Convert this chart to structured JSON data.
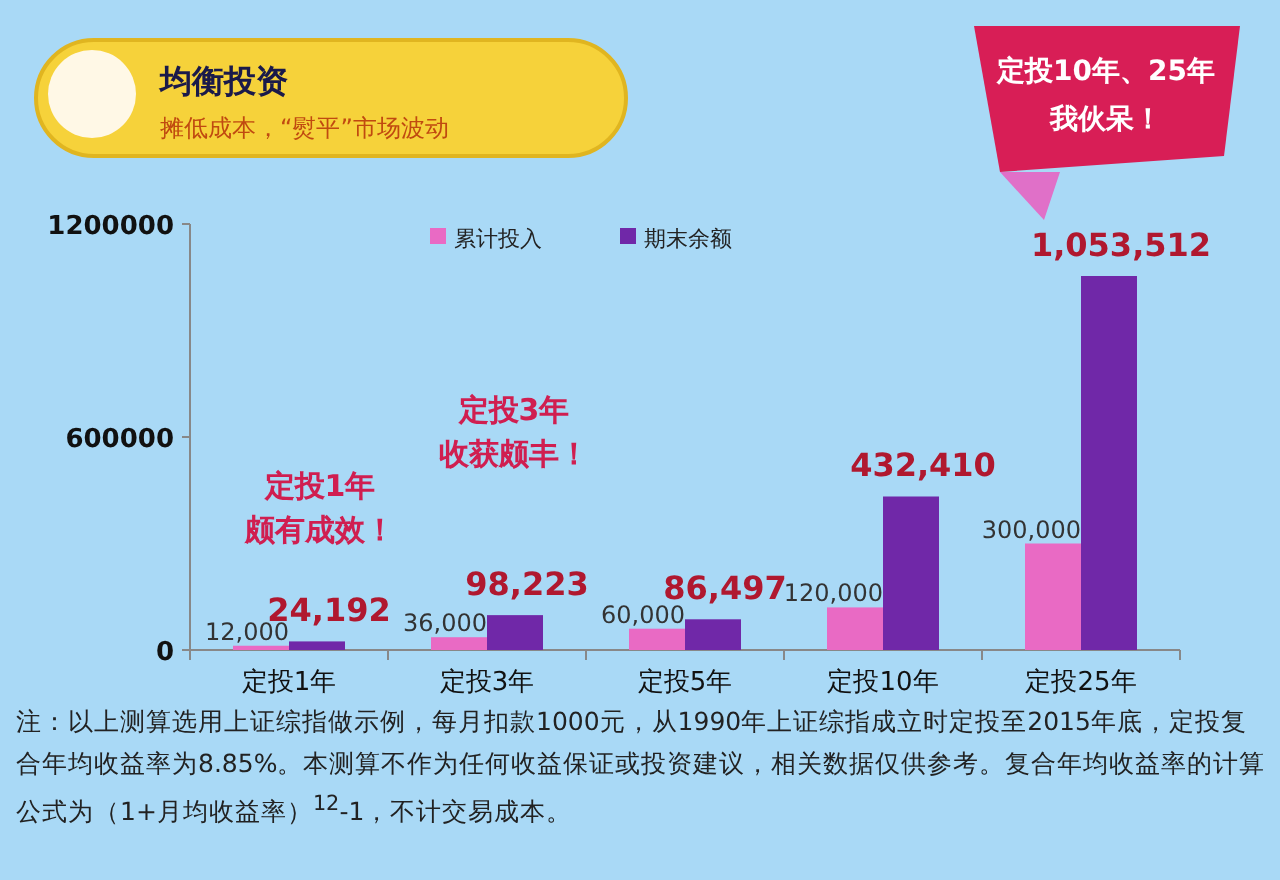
{
  "chart_data": {
    "type": "bar",
    "title": "均衡投资",
    "subtitle": "摊低成本，“熨平”市场波动",
    "categories": [
      "定投1年",
      "定投3年",
      "定投5年",
      "定投10年",
      "定投25年"
    ],
    "series": [
      {
        "name": "累计投入",
        "color": "#e96ac4",
        "values": [
          12000,
          36000,
          60000,
          120000,
          300000
        ],
        "value_labels": [
          "12,000",
          "36,000",
          "60,000",
          "120,000",
          "300,000"
        ]
      },
      {
        "name": "期末余额",
        "color": "#7028a8",
        "values": [
          24192,
          98223,
          86497,
          432410,
          1053512
        ],
        "value_labels": [
          "24,192",
          "98,223",
          "86,497",
          "432,410",
          "1,053,512"
        ]
      }
    ],
    "ylim": [
      0,
      1200000
    ],
    "yticks": [
      0,
      600000,
      1200000
    ],
    "legend": "top",
    "grid": false,
    "annotations": [
      "定投10年、25年",
      "我伙呆！",
      "定投1年",
      "颇有成效！",
      "定投3年",
      "收获颇丰！",
      "注：以上测算选用上证综指做示例，每月扣款1000元，从1990年上证综指成立时定投至2015年底，定投复合年均收益率为8.85%。本测算不作为任何收益保证或投资建议，相关数据仅供参考。复合年均收益率的计算公式为（1+月均收益率）$^{12}$-1，不计交易成本。"
    ]
  }
}
